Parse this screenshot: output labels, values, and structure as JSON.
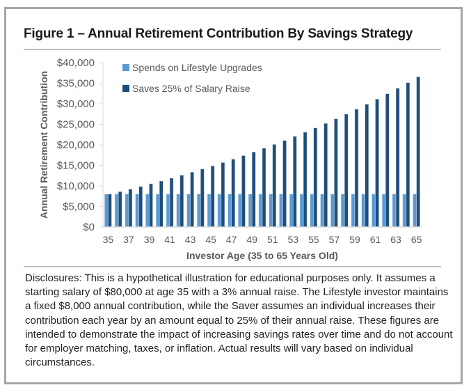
{
  "figure": {
    "title": "Figure 1 – Annual Retirement Contribution By Savings Strategy"
  },
  "colors": {
    "lifestyle": "#5b9bd5",
    "saver": "#1f4e79",
    "axis": "#d9d9d9",
    "tick_text": "#595959"
  },
  "chart_data": {
    "type": "bar",
    "title": "Figure 1 – Annual Retirement Contribution By Savings Strategy",
    "xlabel": "Investor Age (35 to 65 Years Old)",
    "ylabel": "Annual Retirement Contribution",
    "ylim": [
      0,
      40000
    ],
    "yticks": [
      0,
      5000,
      10000,
      15000,
      20000,
      25000,
      30000,
      35000,
      40000
    ],
    "ytick_labels": [
      "$0",
      "$5,000",
      "$10,000",
      "$15,000",
      "$20,000",
      "$25,000",
      "$30,000",
      "$35,000",
      "$40,000"
    ],
    "categories": [
      35,
      36,
      37,
      38,
      39,
      40,
      41,
      42,
      43,
      44,
      45,
      46,
      47,
      48,
      49,
      50,
      51,
      52,
      53,
      54,
      55,
      56,
      57,
      58,
      59,
      60,
      61,
      62,
      63,
      64,
      65
    ],
    "xtick_labels": [
      "35",
      "37",
      "39",
      "41",
      "43",
      "45",
      "47",
      "49",
      "51",
      "53",
      "55",
      "57",
      "59",
      "61",
      "63",
      "65"
    ],
    "grid": false,
    "legend_position": "top-left",
    "series": [
      {
        "name": "Spends on Lifestyle Upgrades",
        "color": "#5b9bd5",
        "values": [
          8000,
          8000,
          8000,
          8000,
          8000,
          8000,
          8000,
          8000,
          8000,
          8000,
          8000,
          8000,
          8000,
          8000,
          8000,
          8000,
          8000,
          8000,
          8000,
          8000,
          8000,
          8000,
          8000,
          8000,
          8000,
          8000,
          8000,
          8000,
          8000,
          8000,
          8000
        ]
      },
      {
        "name": "Saves 25% of Salary Raise",
        "color": "#1f4e79",
        "values": [
          8000,
          8600,
          9218,
          9855,
          10510,
          11185,
          11881,
          12597,
          13335,
          14095,
          14878,
          15685,
          16515,
          17371,
          18252,
          19159,
          20094,
          21057,
          22049,
          23070,
          24122,
          25206,
          26322,
          27472,
          28656,
          29876,
          31132,
          32426,
          33759,
          35131,
          36545
        ]
      }
    ]
  },
  "disclosure": "Disclosures: This is a hypothetical illustration for educational purposes only. It assumes a starting salary of $80,000 at age 35 with a 3% annual raise. The Lifestyle investor maintains a fixed $8,000 annual contribution, while the Saver assumes an individual increases their contribution each year by an amount equal to 25% of their annual raise. These figures are intended to demonstrate the impact of increasing savings rates over time and do not account for employer matching, taxes, or inflation. Actual results will vary based on individual circumstances."
}
